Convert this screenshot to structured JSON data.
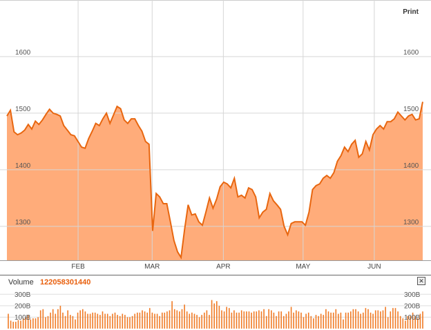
{
  "toolbar": {
    "print_label": "Print"
  },
  "volume": {
    "label": "Volume",
    "value": "122058301440"
  },
  "colors": {
    "line": "#e8660f",
    "fill": "#ffac7a",
    "bar": "#f07a24",
    "grid": "#d6d6d6"
  },
  "chart_data": [
    {
      "type": "area",
      "title": "",
      "xlabel": "",
      "ylabel": "",
      "yticks": [
        1300,
        1400,
        1500,
        1600
      ],
      "ytick_labels": [
        "1300",
        "1400",
        "1500",
        "1600"
      ],
      "ylim": [
        1240,
        1700
      ],
      "xlim": [
        0,
        146
      ],
      "month_labels": [
        {
          "label": "FEB",
          "x": 25
        },
        {
          "label": "MAR",
          "x": 51
        },
        {
          "label": "APR",
          "x": 76
        },
        {
          "label": "MAY",
          "x": 104
        },
        {
          "label": "JUN",
          "x": 129
        }
      ],
      "grid": true,
      "series": [
        {
          "values": [
            1495,
            1505,
            1467,
            1462,
            1465,
            1470,
            1480,
            1472,
            1486,
            1480,
            1488,
            1498,
            1507,
            1500,
            1498,
            1495,
            1478,
            1470,
            1462,
            1460,
            1450,
            1440,
            1438,
            1455,
            1468,
            1482,
            1478,
            1490,
            1500,
            1482,
            1497,
            1512,
            1508,
            1488,
            1482,
            1490,
            1490,
            1478,
            1468,
            1450,
            1445,
            1292,
            1358,
            1352,
            1340,
            1340,
            1308,
            1275,
            1255,
            1245,
            1295,
            1338,
            1320,
            1322,
            1308,
            1302,
            1325,
            1350,
            1332,
            1348,
            1370,
            1378,
            1375,
            1368,
            1385,
            1352,
            1355,
            1350,
            1368,
            1365,
            1352,
            1315,
            1325,
            1330,
            1358,
            1345,
            1338,
            1330,
            1300,
            1285,
            1305,
            1308,
            1308,
            1308,
            1302,
            1325,
            1365,
            1372,
            1375,
            1385,
            1390,
            1385,
            1395,
            1415,
            1425,
            1440,
            1432,
            1445,
            1452,
            1422,
            1428,
            1450,
            1435,
            1462,
            1472,
            1478,
            1472,
            1485,
            1485,
            1490,
            1502,
            1495,
            1488,
            1495,
            1498,
            1488,
            1490,
            1520
          ]
        }
      ]
    },
    {
      "type": "bar",
      "title": "",
      "xlabel": "Volume",
      "ylabel": "",
      "yticks": [
        100,
        200,
        300
      ],
      "ytick_labels": [
        "100B",
        "200B",
        "300B"
      ],
      "ylim": [
        0,
        350
      ],
      "series": [
        {
          "values": [
            130,
            70,
            60,
            60,
            75,
            70,
            90,
            100,
            120,
            80,
            90,
            90,
            100,
            160,
            170,
            100,
            110,
            140,
            170,
            130,
            170,
            200,
            140,
            110,
            160,
            120,
            110,
            80,
            140,
            160,
            170,
            150,
            130,
            130,
            140,
            140,
            130,
            120,
            150,
            130,
            130,
            110,
            130,
            140,
            120,
            110,
            130,
            120,
            100,
            100,
            110,
            130,
            140,
            140,
            160,
            150,
            140,
            180,
            140,
            130,
            130,
            110,
            140,
            140,
            150,
            160,
            240,
            170,
            160,
            150,
            170,
            210,
            150,
            130,
            140,
            130,
            120,
            100,
            120,
            140,
            160,
            120,
            250,
            220,
            240,
            200,
            160,
            150,
            190,
            180,
            140,
            160,
            140,
            140,
            160,
            150,
            150,
            150,
            140,
            150,
            150,
            160,
            150,
            170,
            110,
            170,
            160,
            140,
            110,
            150,
            150,
            110,
            130,
            150,
            190,
            140,
            160,
            150,
            140,
            100,
            130,
            140,
            110,
            90,
            120,
            110,
            130,
            120,
            170,
            150,
            140,
            140,
            170,
            130,
            140,
            80,
            140,
            140,
            150,
            170,
            170,
            150,
            130,
            140,
            180,
            170,
            140,
            130,
            160,
            160,
            150,
            160,
            190,
            100,
            150,
            180,
            180,
            150,
            110,
            90,
            70,
            110,
            110,
            140,
            110,
            90,
            130,
            150
          ]
        }
      ]
    }
  ]
}
